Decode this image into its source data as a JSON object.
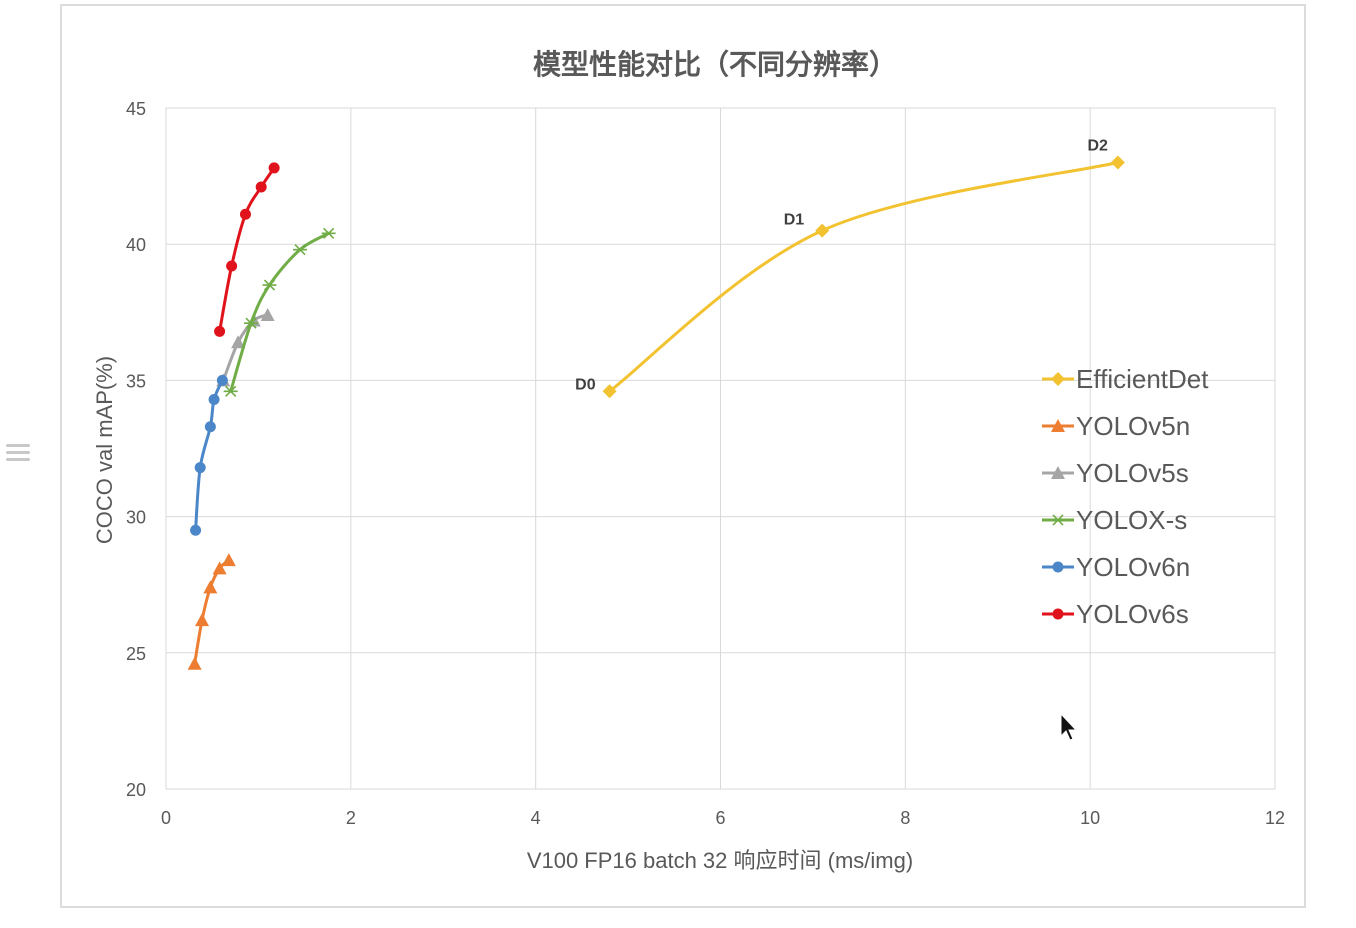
{
  "chart_data": {
    "type": "line",
    "title": "模型性能对比（不同分辨率）",
    "xlabel": "V100 FP16 batch 32 响应时间 (ms/img)",
    "ylabel": "COCO val mAP(%)",
    "xlim": [
      0,
      12
    ],
    "ylim": [
      20,
      45
    ],
    "xticks": [
      0,
      2,
      4,
      6,
      8,
      10,
      12
    ],
    "yticks": [
      20,
      25,
      30,
      35,
      40,
      45
    ],
    "grid": true,
    "legend_position": "right",
    "series": [
      {
        "name": "EfficientDet",
        "color": "#f2c230",
        "marker": "diamond",
        "x": [
          4.8,
          7.1,
          10.3
        ],
        "y": [
          34.6,
          40.5,
          43.0
        ],
        "point_labels": [
          "D0",
          "D1",
          "D2"
        ]
      },
      {
        "name": "YOLOv5n",
        "color": "#ed7d31",
        "marker": "triangle",
        "x": [
          0.31,
          0.39,
          0.48,
          0.58,
          0.68
        ],
        "y": [
          24.6,
          26.2,
          27.4,
          28.1,
          28.4
        ]
      },
      {
        "name": "YOLOv5s",
        "color": "#a5a5a5",
        "marker": "triangle",
        "x": [
          0.62,
          0.78,
          0.95,
          1.1
        ],
        "y": [
          35.0,
          36.4,
          37.2,
          37.4
        ]
      },
      {
        "name": "YOLOX-s",
        "color": "#70ad47",
        "marker": "star",
        "x": [
          0.7,
          0.92,
          1.12,
          1.45,
          1.76
        ],
        "y": [
          34.6,
          37.1,
          38.5,
          39.8,
          40.4
        ]
      },
      {
        "name": "YOLOv6n",
        "color": "#4a86c8",
        "marker": "circle",
        "x": [
          0.32,
          0.37,
          0.48,
          0.52,
          0.61
        ],
        "y": [
          29.5,
          31.8,
          33.3,
          34.3,
          35.0
        ]
      },
      {
        "name": "YOLOv6s",
        "color": "#e0121b",
        "marker": "circle",
        "x": [
          0.58,
          0.71,
          0.86,
          1.03,
          1.17
        ],
        "y": [
          36.8,
          39.2,
          41.1,
          42.1,
          42.8
        ]
      }
    ]
  }
}
